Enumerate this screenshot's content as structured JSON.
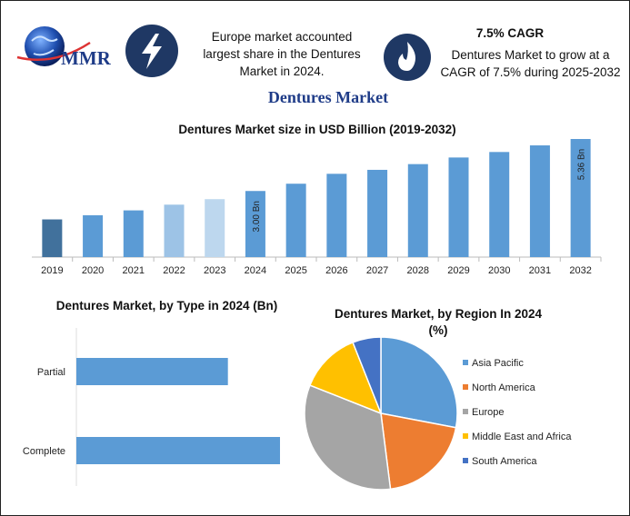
{
  "header": {
    "logo": "MMR",
    "info_left": "Europe market accounted largest share in the Dentures Market in 2024.",
    "cagr_title": "7.5% CAGR",
    "info_right": "Dentures Market to grow at a CAGR of 7.5% during 2025-2032"
  },
  "title": "Dentures Market",
  "chart_data": [
    {
      "type": "bar",
      "title": "Dentures Market size in USD Billion (2019-2032)",
      "categories": [
        "2019",
        "2020",
        "2021",
        "2022",
        "2023",
        "2024",
        "2025",
        "2026",
        "2027",
        "2028",
        "2029",
        "2030",
        "2031",
        "2032"
      ],
      "values": [
        1.71,
        1.9,
        2.12,
        2.38,
        2.63,
        3.0,
        3.33,
        3.78,
        3.96,
        4.22,
        4.52,
        4.77,
        5.07,
        5.36
      ],
      "value_labels": [
        null,
        null,
        null,
        null,
        null,
        "3.00 Bn",
        null,
        null,
        null,
        null,
        null,
        null,
        null,
        "5.36 Bn"
      ],
      "colors": [
        "#41719c",
        "#5b9bd5",
        "#5b9bd5",
        "#9dc3e6",
        "#bdd7ee",
        "#5b9bd5",
        "#5b9bd5",
        "#5b9bd5",
        "#5b9bd5",
        "#5b9bd5",
        "#5b9bd5",
        "#5b9bd5",
        "#5b9bd5",
        "#5b9bd5"
      ]
    },
    {
      "type": "hbar",
      "title": "Dentures Market, by Type in 2024 (Bn)",
      "categories": [
        "Partial",
        "Complete"
      ],
      "values": [
        1.28,
        1.72
      ],
      "color": "#5b9bd5"
    },
    {
      "type": "pie",
      "title": "Dentures Market, by Region In 2024 (%)",
      "categories": [
        "Asia Pacific",
        "North America",
        "Europe",
        "Middle East and Africa",
        "South America"
      ],
      "values": [
        28,
        20,
        33,
        13,
        6
      ],
      "colors": [
        "#5b9bd5",
        "#ed7d31",
        "#a5a5a5",
        "#ffc000",
        "#4472c4"
      ],
      "legend": "right"
    }
  ]
}
